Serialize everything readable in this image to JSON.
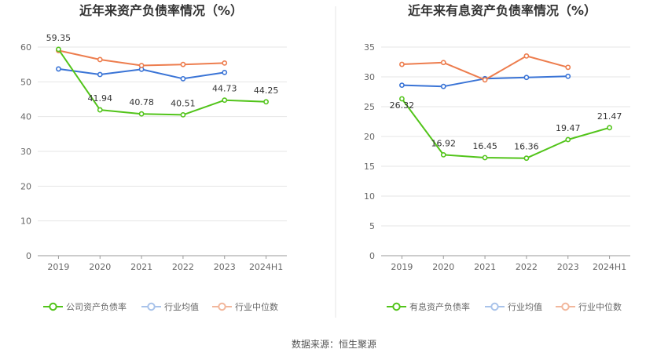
{
  "source_note": "数据来源：恒生聚源",
  "chart_data": [
    {
      "type": "line",
      "title": "近年来资产负债率情况（%）",
      "categories": [
        "2019",
        "2020",
        "2021",
        "2022",
        "2023",
        "2024H1"
      ],
      "ylim": [
        0,
        60
      ],
      "yticks": [
        0,
        10,
        20,
        30,
        40,
        50,
        60
      ],
      "grid": true,
      "legend_position": "bottom",
      "series": [
        {
          "name": "公司资产负债率",
          "color": "#52c41a",
          "values": [
            59.35,
            41.94,
            40.78,
            40.51,
            44.73,
            44.25
          ],
          "labels": [
            "59.35",
            "41.94",
            "40.78",
            "40.51",
            "44.73",
            "44.25"
          ]
        },
        {
          "name": "行业均值",
          "color": "#3a74d6",
          "values": [
            53.7,
            52.1,
            53.6,
            50.9,
            52.7,
            null
          ]
        },
        {
          "name": "行业中位数",
          "color": "#ed7d4e",
          "values": [
            59.0,
            56.4,
            54.7,
            55.0,
            55.4,
            null
          ]
        }
      ]
    },
    {
      "type": "line",
      "title": "近年来有息资产负债率情况（%）",
      "categories": [
        "2019",
        "2020",
        "2021",
        "2022",
        "2023",
        "2024H1"
      ],
      "ylim": [
        0,
        35
      ],
      "yticks": [
        0,
        5,
        10,
        15,
        20,
        25,
        30,
        35
      ],
      "grid": true,
      "legend_position": "bottom",
      "series": [
        {
          "name": "有息资产负债率",
          "color": "#52c41a",
          "values": [
            26.32,
            16.92,
            16.45,
            16.36,
            19.47,
            21.47
          ],
          "labels": [
            "26.32",
            "16.92",
            "16.45",
            "16.36",
            "19.47",
            "21.47"
          ]
        },
        {
          "name": "行业均值",
          "color": "#3a74d6",
          "values": [
            28.6,
            28.4,
            29.7,
            29.9,
            30.1,
            null
          ]
        },
        {
          "name": "行业中位数",
          "color": "#ed7d4e",
          "values": [
            32.1,
            32.4,
            29.5,
            33.5,
            31.6,
            null
          ]
        }
      ]
    }
  ]
}
